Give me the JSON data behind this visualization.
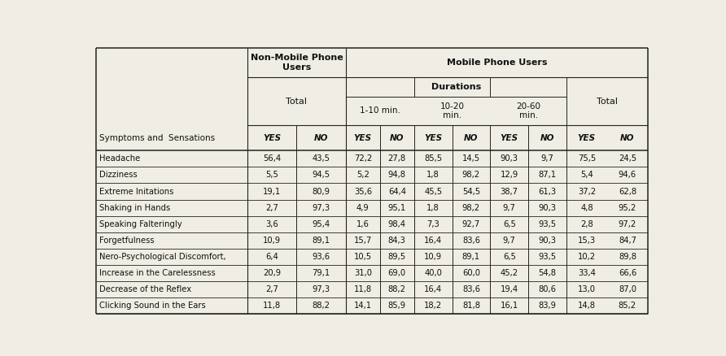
{
  "col_headers_row0": [
    "Non-Mobile Phone\nUsers",
    "Mobile Phone Users"
  ],
  "col_headers_row1": [
    "Durations"
  ],
  "col_headers_row2": [
    "Total",
    "1-10 min.",
    "10-20\nmin.",
    "20-60\nmin.",
    "Total"
  ],
  "sub_headers": [
    "YES",
    "NO",
    "YES",
    "NO",
    "YES",
    "NO",
    "YES",
    "NO",
    "YES",
    "NO"
  ],
  "row_label_header": "Symptoms and  Sensations",
  "rows": [
    [
      "Headache",
      "56,4",
      "43,5",
      "72,2",
      "27,8",
      "85,5",
      "14,5",
      "90,3",
      "9,7",
      "75,5",
      "24,5"
    ],
    [
      "Dizziness",
      "5,5",
      "94,5",
      "5,2",
      "94,8",
      "1,8",
      "98,2",
      "12,9",
      "87,1",
      "5,4",
      "94,6"
    ],
    [
      "Extreme Initations",
      "19,1",
      "80,9",
      "35,6",
      "64,4",
      "45,5",
      "54,5",
      "38,7",
      "61,3",
      "37,2",
      "62,8"
    ],
    [
      "Shaking in Hands",
      "2,7",
      "97,3",
      "4,9",
      "95,1",
      "1,8",
      "98,2",
      "9,7",
      "90,3",
      "4,8",
      "95,2"
    ],
    [
      "Speaking Falteringly",
      "3,6",
      "95,4",
      "1,6",
      "98,4",
      "7,3",
      "92,7",
      "6,5",
      "93,5",
      "2,8",
      "97,2"
    ],
    [
      "Forgetfulness",
      "10,9",
      "89,1",
      "15,7",
      "84,3",
      "16,4",
      "83,6",
      "9,7",
      "90,3",
      "15,3",
      "84,7"
    ],
    [
      "Nero-Psychological Discomfort,",
      "6,4",
      "93,6",
      "10,5",
      "89,5",
      "10,9",
      "89,1",
      "6,5",
      "93,5",
      "10,2",
      "89,8"
    ],
    [
      "Increase in the Carelessness",
      "20,9",
      "79,1",
      "31,0",
      "69,0",
      "40,0",
      "60,0",
      "45,2",
      "54,8",
      "33,4",
      "66,6"
    ],
    [
      "Decrease of the Reflex",
      "2,7",
      "97,3",
      "11,8",
      "88,2",
      "16,4",
      "83,6",
      "19,4",
      "80,6",
      "13,0",
      "87,0"
    ],
    [
      "Clicking Sound in the Ears",
      "11,8",
      "88,2",
      "14,1",
      "85,9",
      "18,2",
      "81,8",
      "16,1",
      "83,9",
      "14,8",
      "85,2"
    ]
  ],
  "bg_color": "#f0ede4",
  "fs_title_header": 8.0,
  "fs_subheader": 7.5,
  "fs_data": 7.2
}
